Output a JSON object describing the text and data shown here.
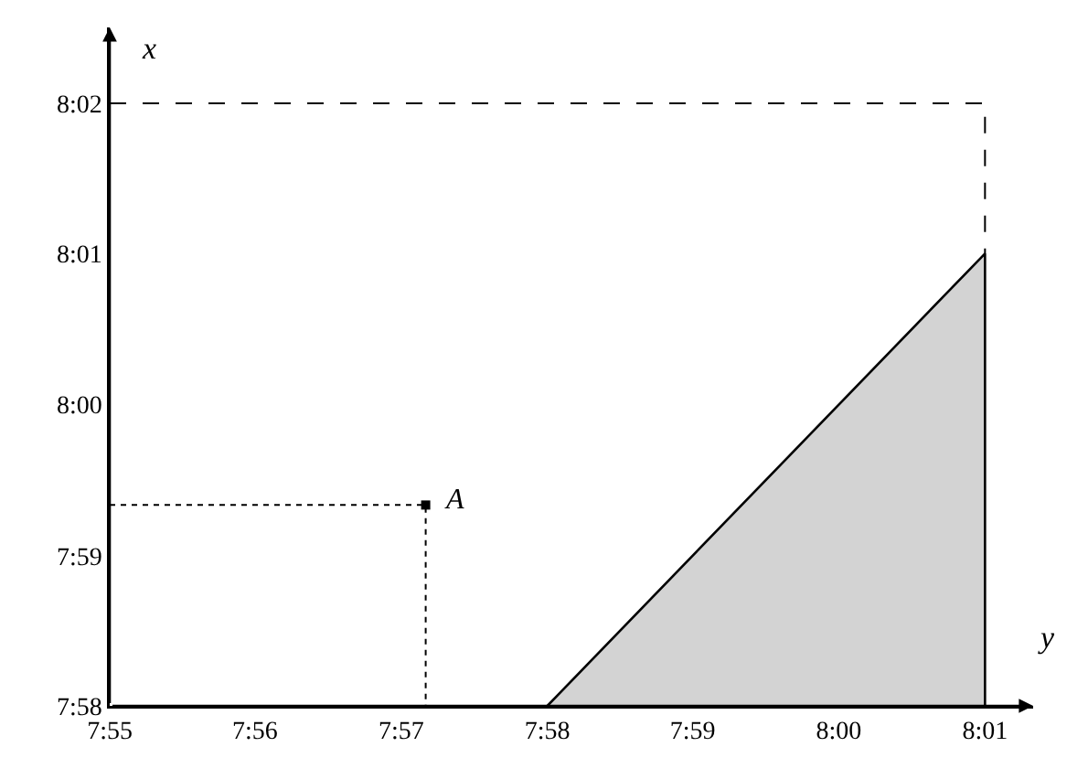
{
  "chart_data": {
    "type": "line",
    "xlabel": "y",
    "ylabel": "x",
    "xlim": [
      7.9167,
      8.0222
    ],
    "ylim": [
      7.9667,
      8.0417
    ],
    "xticks": [
      {
        "value": 7.9167,
        "label": "7:55"
      },
      {
        "value": 7.9333,
        "label": "7:56"
      },
      {
        "value": 7.95,
        "label": "7:57"
      },
      {
        "value": 7.9667,
        "label": "7:58"
      },
      {
        "value": 7.9833,
        "label": "7:59"
      },
      {
        "value": 8,
        "label": "8:00"
      },
      {
        "value": 8.0167,
        "label": "8:01"
      }
    ],
    "yticks": [
      {
        "value": 7.9667,
        "label": "7:58"
      },
      {
        "value": 7.9833,
        "label": "7:59"
      },
      {
        "value": 8,
        "label": "8:00"
      },
      {
        "value": 8.0167,
        "label": "8:01"
      },
      {
        "value": 8.0333,
        "label": "8:02"
      }
    ],
    "series": [
      {
        "type": "area",
        "color": "#d3d3d3",
        "x": [
          7.9667,
          8.0167,
          8.0167
        ],
        "values": [
          7.9667,
          8.0167,
          7.9667
        ]
      },
      {
        "color": "#000000",
        "line_style": "dashed",
        "x": [
          7.9167,
          8.0167,
          8.0167
        ],
        "values": [
          8.0333,
          8.0333,
          8.0167
        ]
      },
      {
        "color": "#000000",
        "line_style": "dotted",
        "x": [
          7.9167,
          7.9528,
          7.9528
        ],
        "values": [
          7.9889,
          7.9889,
          7.9667
        ]
      },
      {
        "type": "scatter",
        "color": "#000000",
        "marker": "square",
        "x": [
          7.9528
        ],
        "values": [
          7.9889
        ]
      }
    ],
    "annotations": [
      {
        "text": "A",
        "x": 7.9528,
        "y": 7.9889
      }
    ],
    "grid": false
  }
}
